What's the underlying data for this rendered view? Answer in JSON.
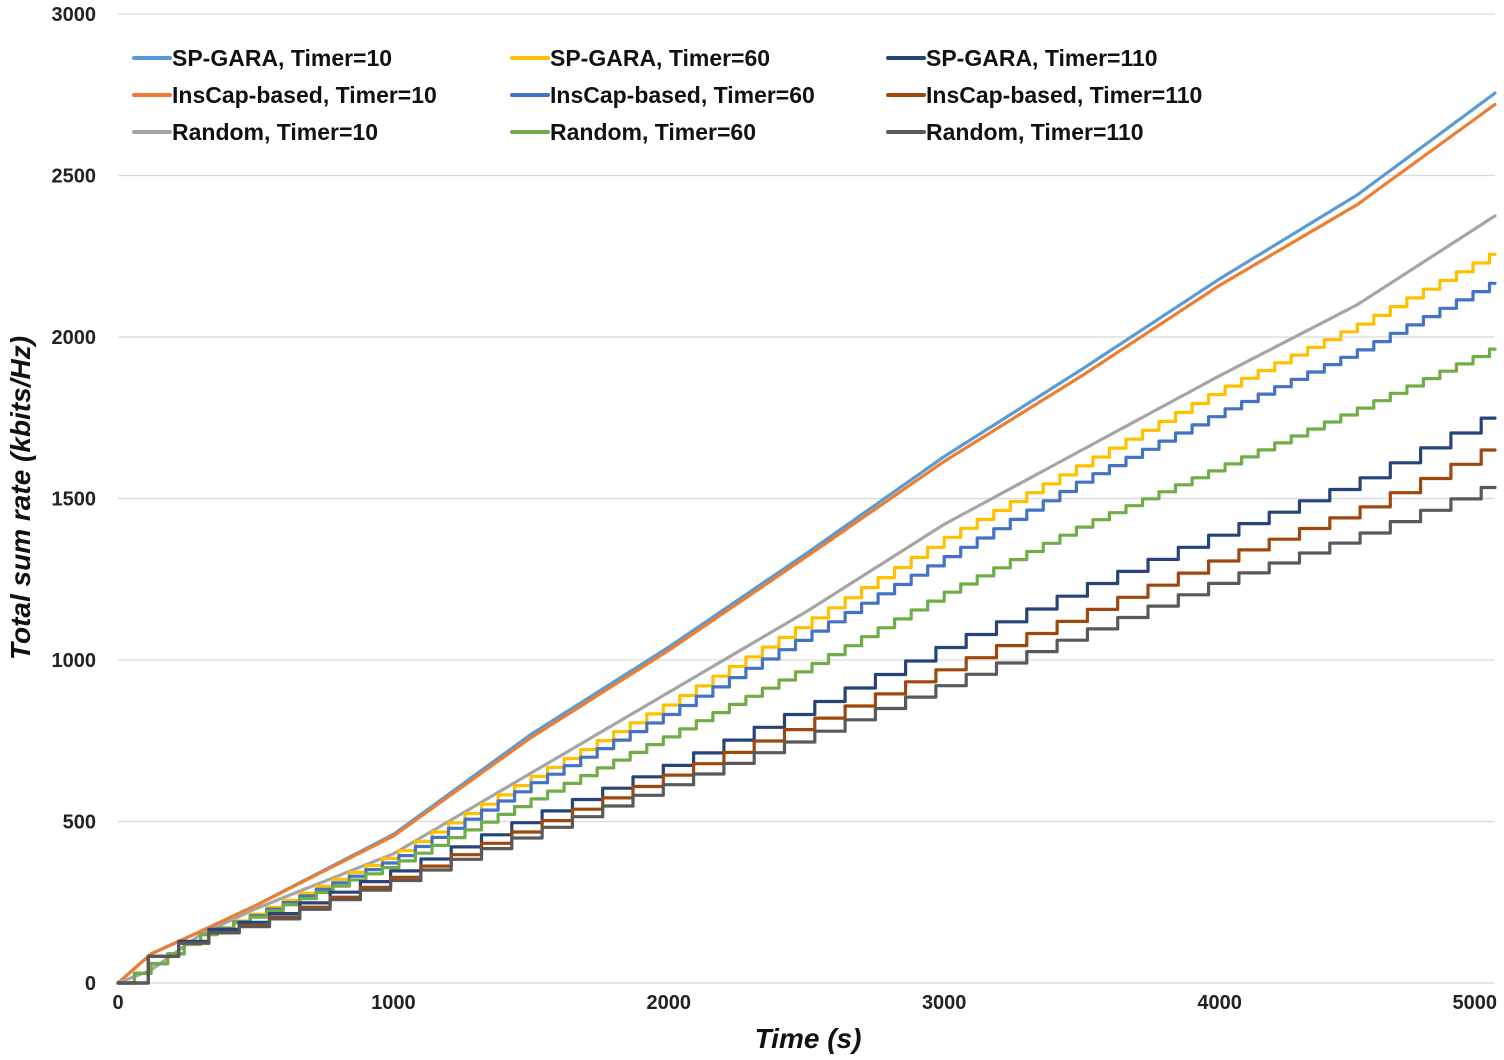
{
  "chart_data": {
    "type": "line",
    "title": "",
    "xlabel": "Time (s)",
    "ylabel": "Total sum rate (kbits/Hz)",
    "xlim": [
      0,
      5000
    ],
    "ylim": [
      0,
      3000
    ],
    "x_ticks": [
      0,
      1000,
      2000,
      3000,
      4000,
      5000
    ],
    "y_ticks": [
      0,
      500,
      1000,
      1500,
      2000,
      2500,
      3000
    ],
    "grid": "horizontal",
    "legend_position": "top-left",
    "series": [
      {
        "name": "SP-GARA, Timer=10",
        "color": "#5B9BD5",
        "step": 10,
        "points": [
          [
            0,
            0
          ],
          [
            120,
            90
          ],
          [
            300,
            160
          ],
          [
            500,
            240
          ],
          [
            1000,
            460
          ],
          [
            1500,
            770
          ],
          [
            2000,
            1040
          ],
          [
            2500,
            1330
          ],
          [
            3000,
            1630
          ],
          [
            3500,
            1900
          ],
          [
            4000,
            2180
          ],
          [
            4500,
            2440
          ],
          [
            5000,
            2755
          ]
        ]
      },
      {
        "name": "InsCap-based, Timer=10",
        "color": "#ED7D31",
        "step": 10,
        "points": [
          [
            0,
            0
          ],
          [
            120,
            90
          ],
          [
            300,
            160
          ],
          [
            500,
            240
          ],
          [
            1000,
            455
          ],
          [
            1500,
            760
          ],
          [
            2000,
            1030
          ],
          [
            2500,
            1320
          ],
          [
            3000,
            1615
          ],
          [
            3500,
            1880
          ],
          [
            4000,
            2160
          ],
          [
            4500,
            2410
          ],
          [
            5000,
            2720
          ]
        ]
      },
      {
        "name": "Random, Timer=10",
        "color": "#A5A5A5",
        "step": 10,
        "points": [
          [
            0,
            0
          ],
          [
            120,
            40
          ],
          [
            300,
            150
          ],
          [
            500,
            230
          ],
          [
            1000,
            400
          ],
          [
            1500,
            650
          ],
          [
            2000,
            900
          ],
          [
            2500,
            1150
          ],
          [
            3000,
            1420
          ],
          [
            3500,
            1650
          ],
          [
            4000,
            1880
          ],
          [
            4500,
            2100
          ],
          [
            5000,
            2375
          ]
        ]
      },
      {
        "name": "SP-GARA, Timer=60",
        "color": "#FFC000",
        "step": 60,
        "points": [
          [
            0,
            0
          ],
          [
            120,
            60
          ],
          [
            300,
            150
          ],
          [
            500,
            220
          ],
          [
            1000,
            400
          ],
          [
            1500,
            640
          ],
          [
            2000,
            870
          ],
          [
            2500,
            1120
          ],
          [
            3000,
            1380
          ],
          [
            3500,
            1610
          ],
          [
            4000,
            1840
          ],
          [
            4500,
            2040
          ],
          [
            5000,
            2265
          ]
        ]
      },
      {
        "name": "InsCap-based, Timer=60",
        "color": "#4472C4",
        "step": 60,
        "points": [
          [
            0,
            0
          ],
          [
            120,
            60
          ],
          [
            300,
            150
          ],
          [
            500,
            215
          ],
          [
            1000,
            385
          ],
          [
            1500,
            620
          ],
          [
            2000,
            840
          ],
          [
            2500,
            1080
          ],
          [
            3000,
            1320
          ],
          [
            3500,
            1560
          ],
          [
            4000,
            1770
          ],
          [
            4500,
            1960
          ],
          [
            5000,
            2175
          ]
        ]
      },
      {
        "name": "Random, Timer=60",
        "color": "#70AD47",
        "step": 60,
        "points": [
          [
            0,
            0
          ],
          [
            120,
            60
          ],
          [
            300,
            150
          ],
          [
            500,
            210
          ],
          [
            1000,
            370
          ],
          [
            1500,
            570
          ],
          [
            2000,
            770
          ],
          [
            2500,
            980
          ],
          [
            3000,
            1210
          ],
          [
            3500,
            1420
          ],
          [
            4000,
            1600
          ],
          [
            4500,
            1780
          ],
          [
            5000,
            1970
          ]
        ]
      },
      {
        "name": "SP-GARA, Timer=110",
        "color": "#264478",
        "step": 110,
        "points": [
          [
            0,
            0
          ],
          [
            120,
            90
          ],
          [
            300,
            160
          ],
          [
            500,
            200
          ],
          [
            1000,
            350
          ],
          [
            1500,
            520
          ],
          [
            2000,
            680
          ],
          [
            2500,
            860
          ],
          [
            3000,
            1050
          ],
          [
            3500,
            1230
          ],
          [
            4000,
            1400
          ],
          [
            4500,
            1560
          ],
          [
            5000,
            1770
          ]
        ]
      },
      {
        "name": "InsCap-based, Timer=110",
        "color": "#9E480E",
        "step": 110,
        "points": [
          [
            0,
            0
          ],
          [
            120,
            90
          ],
          [
            300,
            150
          ],
          [
            500,
            190
          ],
          [
            1000,
            330
          ],
          [
            1500,
            490
          ],
          [
            2000,
            650
          ],
          [
            2500,
            810
          ],
          [
            3000,
            980
          ],
          [
            3500,
            1150
          ],
          [
            4000,
            1320
          ],
          [
            4500,
            1470
          ],
          [
            5000,
            1670
          ]
        ]
      },
      {
        "name": "Random, Timer=110",
        "color": "#595959",
        "step": 110,
        "points": [
          [
            0,
            0
          ],
          [
            120,
            90
          ],
          [
            300,
            150
          ],
          [
            500,
            185
          ],
          [
            1000,
            320
          ],
          [
            1500,
            470
          ],
          [
            2000,
            620
          ],
          [
            2500,
            770
          ],
          [
            3000,
            930
          ],
          [
            3500,
            1090
          ],
          [
            4000,
            1250
          ],
          [
            4500,
            1390
          ],
          [
            5000,
            1550
          ]
        ]
      }
    ]
  }
}
